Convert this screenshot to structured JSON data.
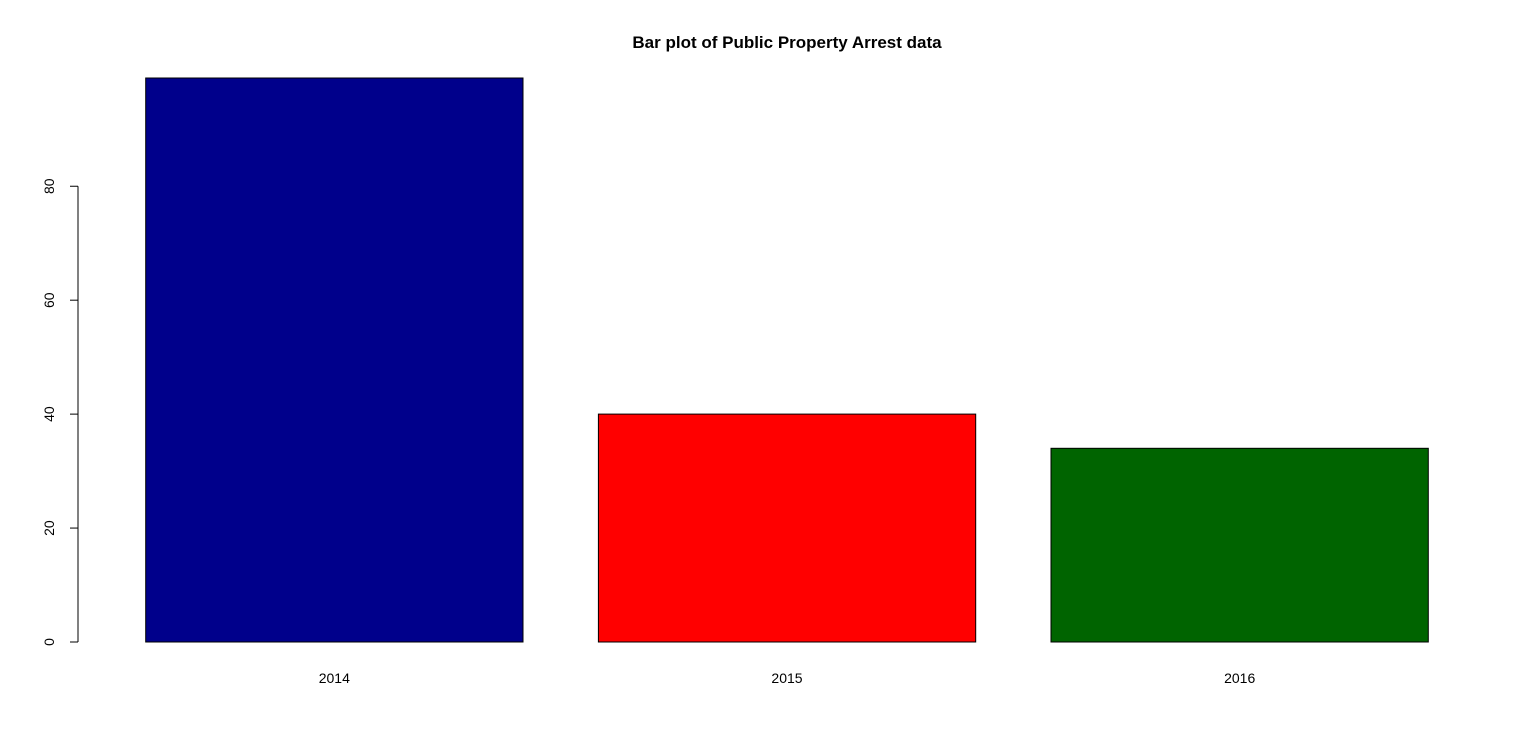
{
  "chart_data": {
    "type": "bar",
    "title": "Bar plot of Public Property Arrest data",
    "xlabel": "",
    "ylabel": "",
    "categories": [
      "2014",
      "2015",
      "2016"
    ],
    "values": [
      99,
      40,
      34
    ],
    "bar_colors": [
      "#00008B",
      "#FF0000",
      "#006400"
    ],
    "ylim": [
      0,
      99
    ],
    "yticks": [
      0,
      20,
      40,
      60,
      80
    ],
    "ytick_labels": [
      "0",
      "20",
      "40",
      "60",
      "80"
    ],
    "grid": false,
    "legend": "none"
  }
}
